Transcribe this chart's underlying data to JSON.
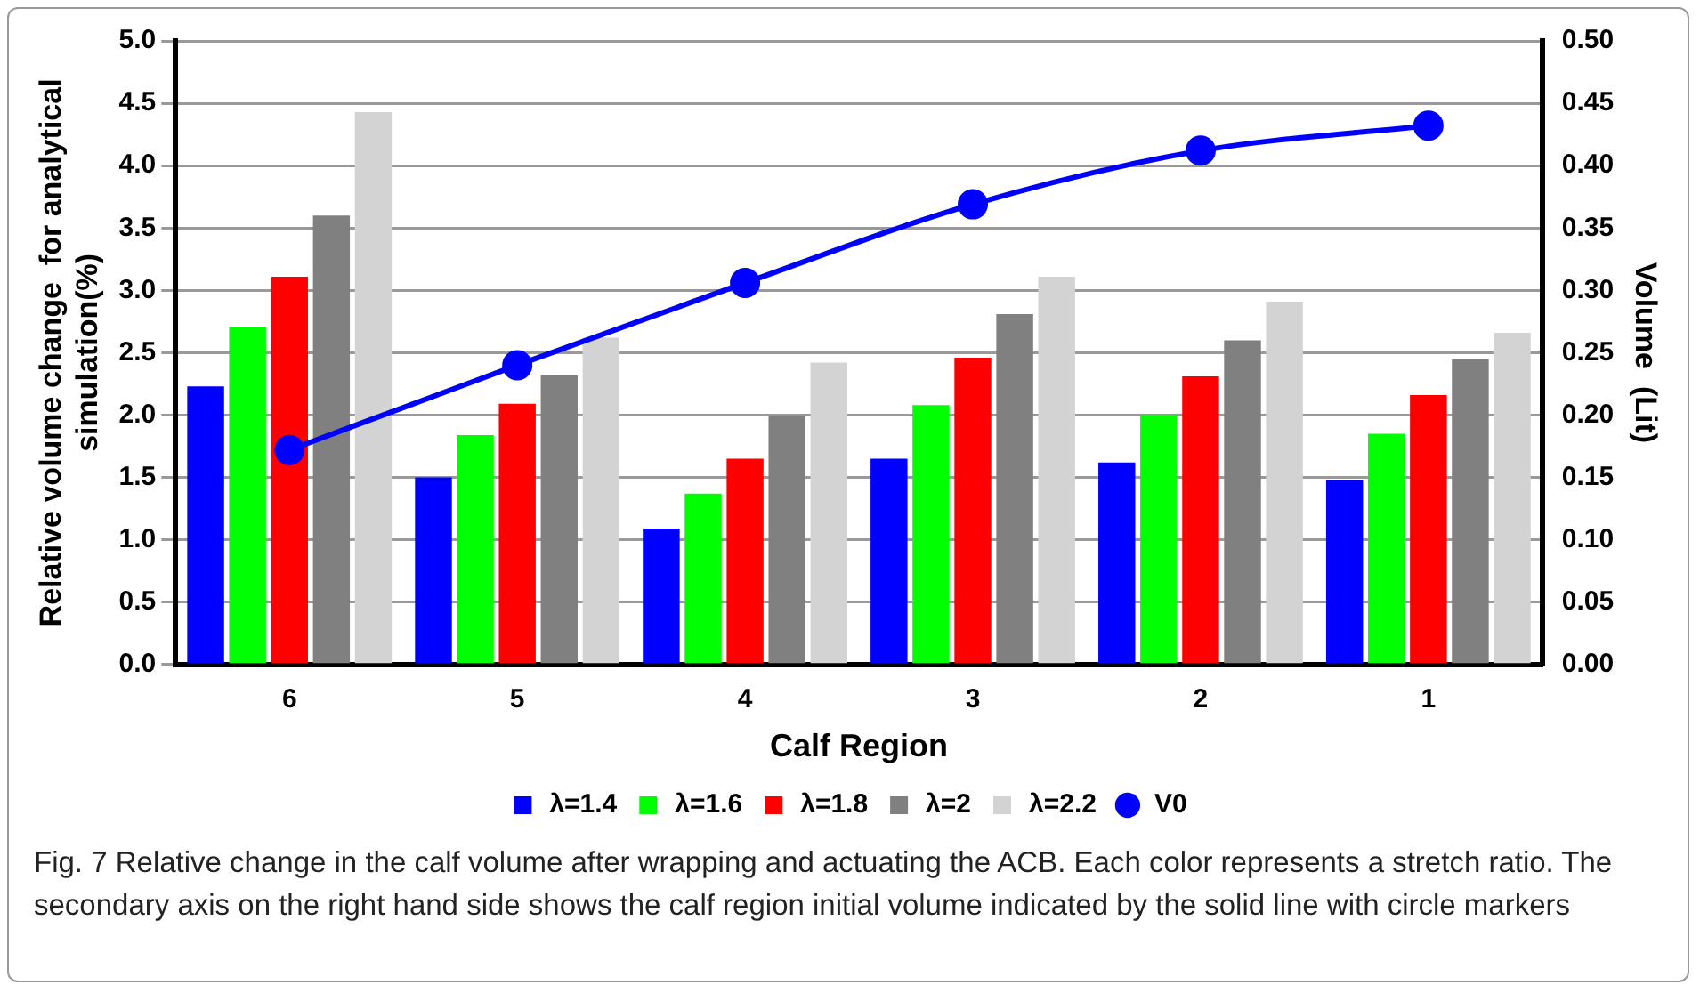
{
  "chart_data": {
    "type": "bar",
    "xlabel": "Calf Region",
    "ylabel": "Relative volume change  for analytical simulation(%)",
    "y2label": "Volume  (Lit)",
    "categories": [
      "6",
      "5",
      "4",
      "3",
      "2",
      "1"
    ],
    "series": [
      {
        "name": "λ=1.4",
        "color": "#0000ff",
        "values": [
          2.23,
          1.5,
          1.09,
          1.65,
          1.62,
          1.48
        ]
      },
      {
        "name": "λ=1.6",
        "color": "#00ff00",
        "values": [
          2.71,
          1.84,
          1.37,
          2.08,
          2.0,
          1.85
        ]
      },
      {
        "name": "λ=1.8",
        "color": "#ff0000",
        "values": [
          3.11,
          2.09,
          1.65,
          2.46,
          2.31,
          2.16
        ]
      },
      {
        "name": "λ=2",
        "color": "#808080",
        "values": [
          3.6,
          2.32,
          1.99,
          2.81,
          2.6,
          2.45
        ]
      },
      {
        "name": "λ=2.2",
        "color": "#d3d3d3",
        "values": [
          4.43,
          2.62,
          2.42,
          3.11,
          2.91,
          2.66
        ]
      },
      {
        "name": "V0",
        "type": "line",
        "axis": "y2",
        "color": "#0000ff",
        "marker": "circle",
        "values": [
          0.172,
          0.24,
          0.306,
          0.369,
          0.412,
          0.432
        ]
      }
    ],
    "ylim": [
      0,
      5
    ],
    "yticks": [
      {
        "value": 0,
        "label": "0.0"
      },
      {
        "value": 0.5,
        "label": "0.5"
      },
      {
        "value": 1,
        "label": "1.0"
      },
      {
        "value": 1.5,
        "label": "1.5"
      },
      {
        "value": 2,
        "label": "2.0"
      },
      {
        "value": 2.5,
        "label": "2.5"
      },
      {
        "value": 3,
        "label": "3.0"
      },
      {
        "value": 3.5,
        "label": "3.5"
      },
      {
        "value": 4,
        "label": "4.0"
      },
      {
        "value": 4.5,
        "label": "4.5"
      },
      {
        "value": 5,
        "label": "5.0"
      }
    ],
    "y2lim": [
      0,
      0.5
    ],
    "y2ticks": [
      {
        "value": 0,
        "label": "0.00"
      },
      {
        "value": 0.05,
        "label": "0.05"
      },
      {
        "value": 0.1,
        "label": "0.10"
      },
      {
        "value": 0.15,
        "label": "0.15"
      },
      {
        "value": 0.2,
        "label": "0.20"
      },
      {
        "value": 0.25,
        "label": "0.25"
      },
      {
        "value": 0.3,
        "label": "0.30"
      },
      {
        "value": 0.35,
        "label": "0.35"
      },
      {
        "value": 0.4,
        "label": "0.40"
      },
      {
        "value": 0.45,
        "label": "0.45"
      },
      {
        "value": 0.5,
        "label": "0.50"
      }
    ],
    "grid": "y",
    "legend": "bottom",
    "annotations": [
      "Fig. 7  Relative change in the calf volume after wrapping and actuating the ACB. Each color represents a stretch ratio. The secondary axis on the right hand side shows the calf region initial volume indicated by the solid line with circle markers"
    ]
  }
}
